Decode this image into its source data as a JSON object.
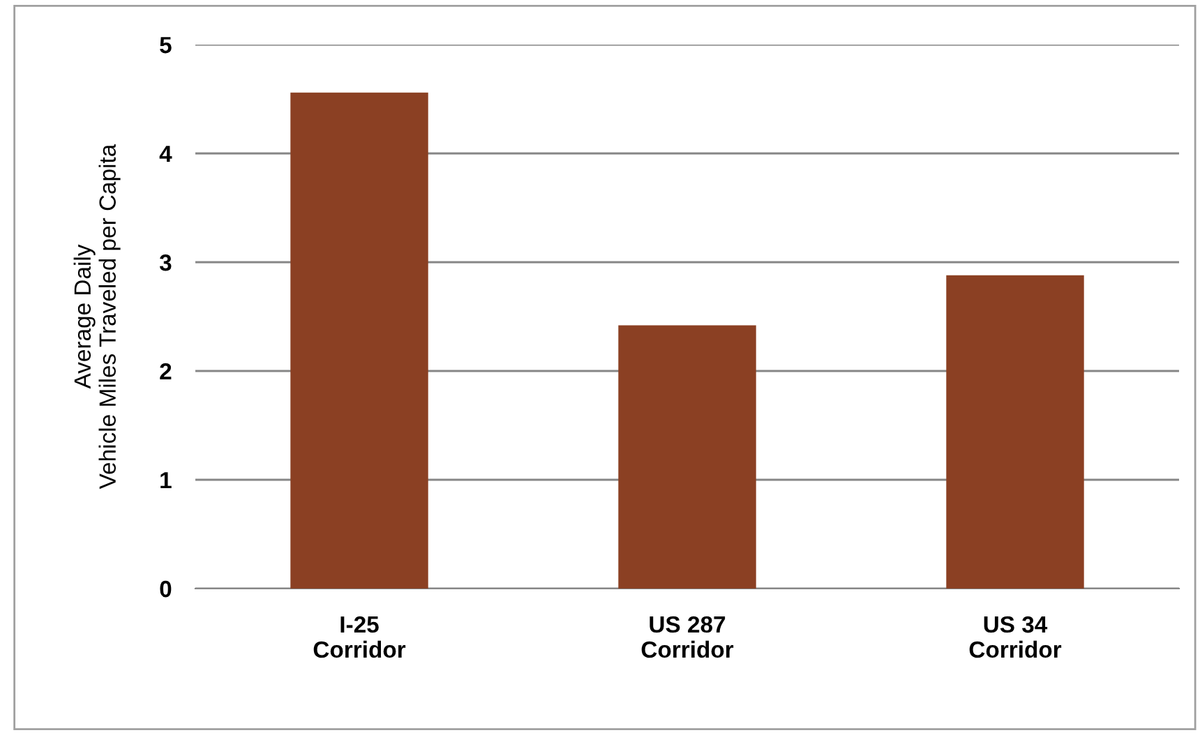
{
  "chart_data": {
    "type": "bar",
    "ylabel": "Average Daily\nVehicle Miles Traveled per Capita",
    "categories": [
      "I-25\nCorridor",
      "US 287\nCorridor",
      "US 34\nCorridor"
    ],
    "values": [
      4.56,
      2.42,
      2.88
    ],
    "color": "#8b4023",
    "ylim": [
      0,
      5
    ],
    "yticks": [
      0,
      1,
      2,
      3,
      4,
      5
    ],
    "grid": "y",
    "legend": false
  }
}
